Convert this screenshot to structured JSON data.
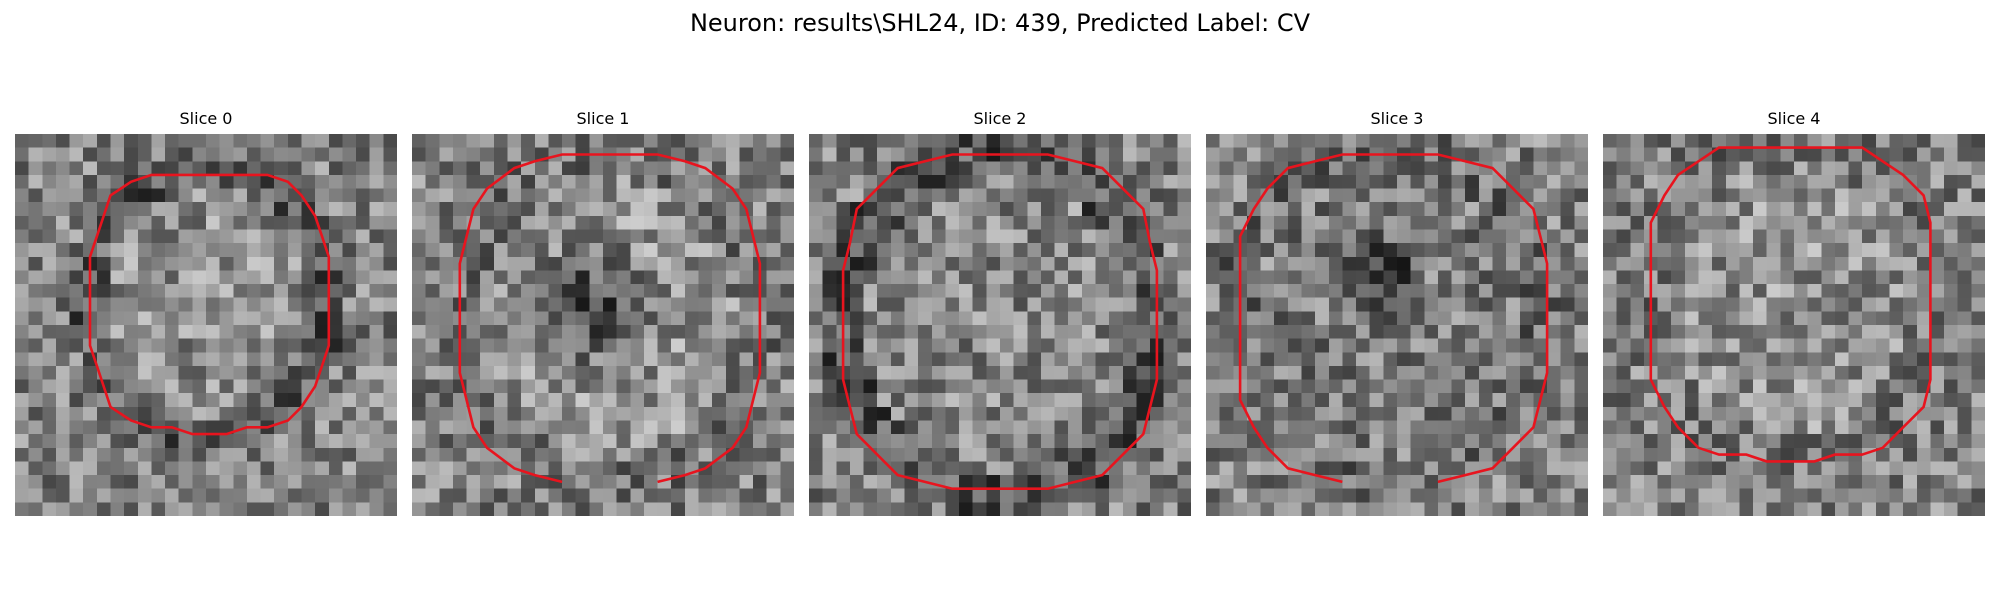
{
  "figure": {
    "title": "Neuron: results\\SHL24, ID: 439, Predicted Label: CV"
  },
  "panels": [
    {
      "title": "Slice 0"
    },
    {
      "title": "Slice 1"
    },
    {
      "title": "Slice 2"
    },
    {
      "title": "Slice 3"
    },
    {
      "title": "Slice 4"
    }
  ],
  "colors": {
    "contour": "#e8141e",
    "background": "#ffffff"
  }
}
